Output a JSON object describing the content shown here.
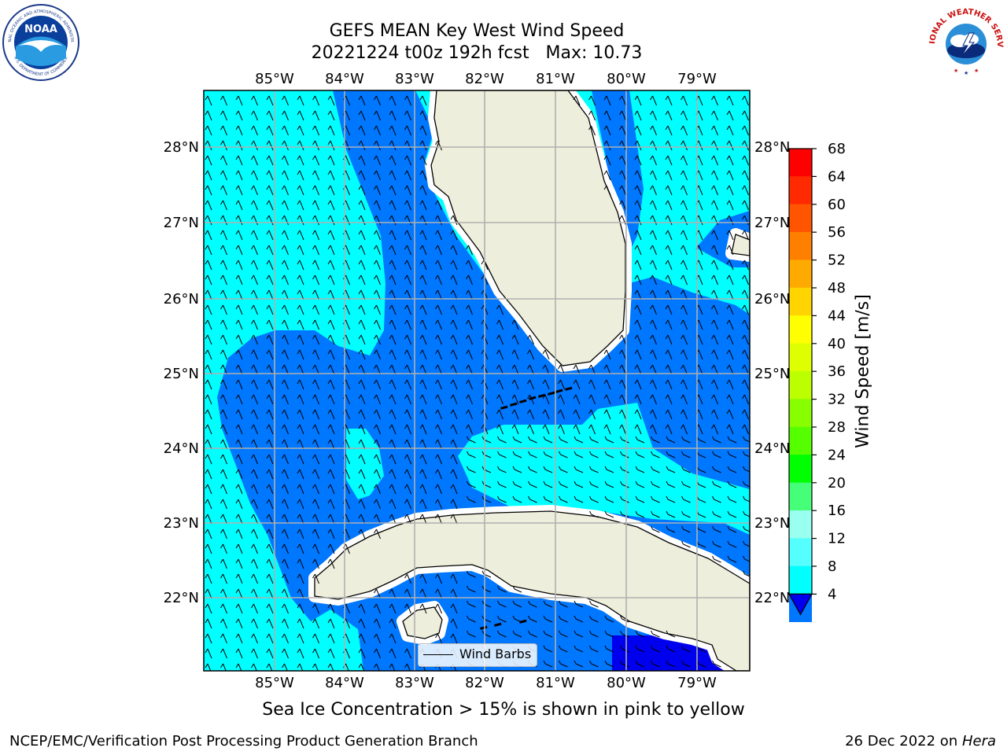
{
  "title": {
    "line1": "GEFS MEAN Key West Wind Speed",
    "line2": "20221224 t00z 192h fcst   Max: 10.73"
  },
  "map": {
    "lon_ticks": [
      "85°W",
      "84°W",
      "83°W",
      "82°W",
      "81°W",
      "80°W",
      "79°W"
    ],
    "lat_ticks": [
      "28°N",
      "27°N",
      "26°N",
      "25°N",
      "24°N",
      "23°N",
      "22°N"
    ],
    "colors": {
      "land": "#EEEEDC",
      "cyan": "#00FFFF",
      "blue": "#0077FF",
      "deep_blue": "#0000EE",
      "coast": "#000000",
      "grid": "#B0B0B0"
    },
    "legend_label": "Wind Barbs"
  },
  "colorbar": {
    "title": "Wind Speed [m/s]",
    "ticks": [
      "68",
      "64",
      "60",
      "56",
      "52",
      "48",
      "44",
      "40",
      "36",
      "32",
      "28",
      "24",
      "20",
      "16",
      "12",
      "8",
      "4"
    ],
    "colors": [
      "#FF0000",
      "#FF2A00",
      "#FF5500",
      "#FF7F00",
      "#FFAA00",
      "#FFD400",
      "#FFFF00",
      "#DDFF00",
      "#BBFF00",
      "#88FF00",
      "#55FF00",
      "#00FF00",
      "#44FF77",
      "#99FFEE",
      "#55FFFF",
      "#00FFFF",
      "#0077FF"
    ],
    "under_color": "#0000EE"
  },
  "caption": "Sea Ice Concentration > 15% is shown in pink to yellow",
  "footer": {
    "left": "NCEP/EMC/Verification Post Processing Product Generation Branch",
    "date": "26 Dec 2022 on ",
    "host": "Hera"
  },
  "logos": {
    "left_text": "NOAA",
    "left_ring": "NATIONAL OCEANIC AND ATMOSPHERIC ADMINISTRATION",
    "left_bottom": "U.S. DEPARTMENT OF COMMERCE",
    "right_ring": "NATIONAL WEATHER SERVICE"
  }
}
